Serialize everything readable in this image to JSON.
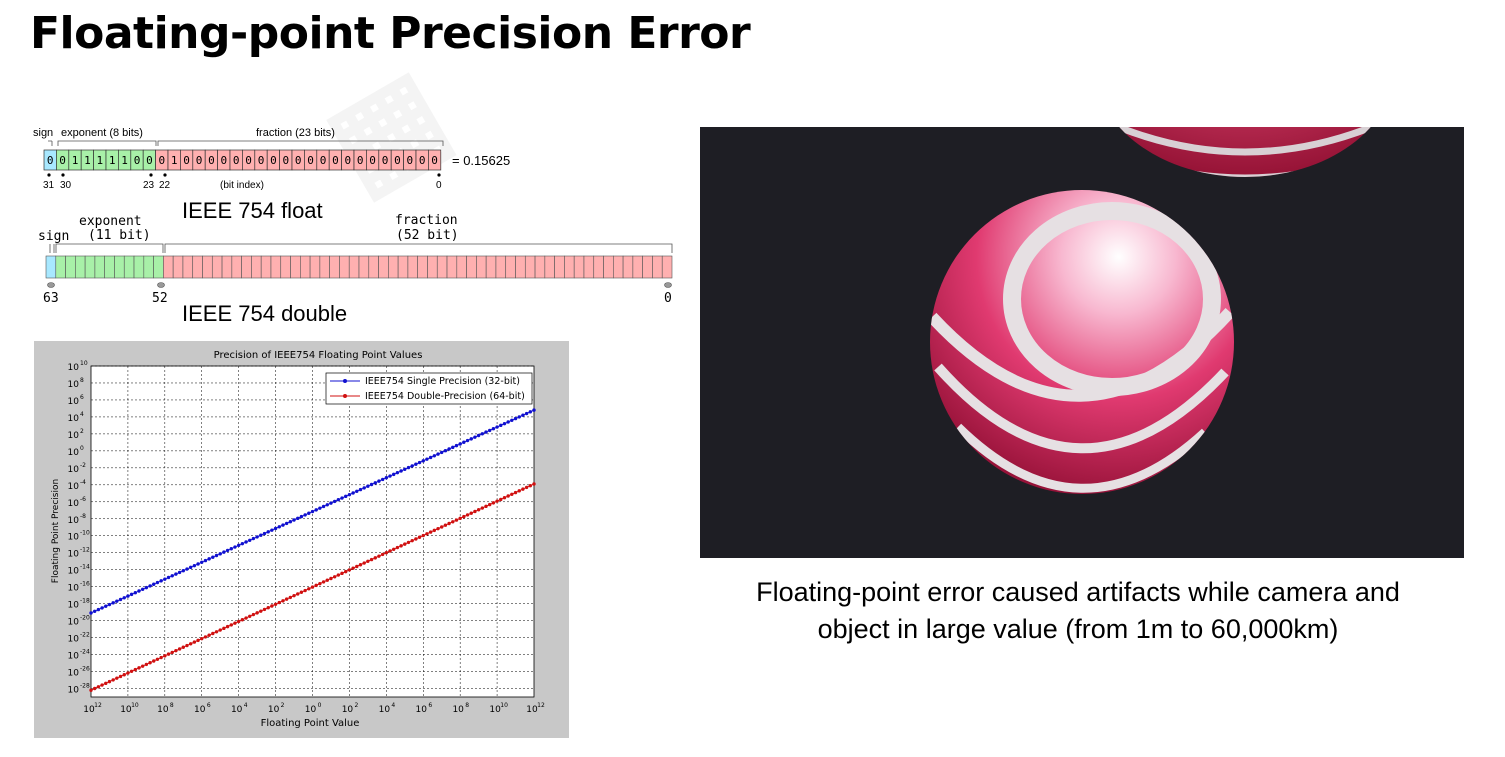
{
  "title": "Floating-point Precision Error",
  "float_diagram": {
    "sign_label": "sign",
    "exponent_label": "exponent (8 bits)",
    "fraction_label": "fraction (23 bits)",
    "bits": "00111110001000000000000000000000",
    "equals": "= 0.15625",
    "index_31": "31",
    "index_30": "30",
    "index_23": "23",
    "index_22": "22",
    "index_0": "0",
    "bit_index_label": "(bit index)",
    "caption": "IEEE 754 float"
  },
  "double_diagram": {
    "sign_label": "sign",
    "exponent_label": "exponent",
    "exponent_bits": "(11 bit)",
    "fraction_label": "fraction",
    "fraction_bits": "(52 bit)",
    "index_63": "63",
    "index_52": "52",
    "index_0": "0",
    "caption": "IEEE 754 double"
  },
  "chart_data": {
    "type": "line",
    "title": "Precision of IEEE754 Floating Point Values",
    "xlabel": "Floating Point Value",
    "ylabel": "Floating Point Precision",
    "x_log_exponent_range": [
      -12,
      12
    ],
    "y_log_exponent_range": [
      -29,
      10
    ],
    "x_tick_exponents": [
      12,
      10,
      8,
      6,
      4,
      2,
      0,
      2,
      4,
      6,
      8,
      10,
      12
    ],
    "y_tick_exponents": [
      10,
      8,
      6,
      4,
      2,
      0,
      -2,
      -4,
      -6,
      -8,
      -10,
      -12,
      -14,
      -16,
      -18,
      -20,
      -22,
      -24,
      -26,
      -28
    ],
    "grid": true,
    "legend_position": "top-right",
    "series": [
      {
        "name": "IEEE754 Single Precision (32-bit)",
        "color": "#1010d0",
        "log_x": [
          -12,
          12
        ],
        "log_y": [
          -19.1,
          4.8
        ]
      },
      {
        "name": "IEEE754 Double-Precision (64-bit)",
        "color": "#d01010",
        "log_x": [
          -12,
          12
        ],
        "log_y": [
          -28.2,
          -3.9
        ]
      }
    ]
  },
  "caption": {
    "line1": "Floating-point error caused artifacts while camera and",
    "line2": "object in large value (from 1m to 60,000km)"
  },
  "colors": {
    "sign": "#a8e8ff",
    "exponent": "#a8f0a8",
    "fraction": "#ffb0b0",
    "sphere": "#d81850",
    "render_bg": "#1e1e24"
  }
}
